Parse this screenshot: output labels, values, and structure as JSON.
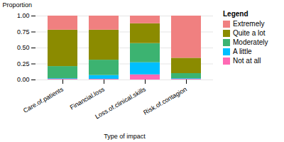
{
  "chart_data": {
    "type": "bar",
    "stacked": true,
    "categories": [
      "Care.of.patients",
      "Financial.loss",
      "Loss.of.clinical.skills",
      "Risk.of.contagion"
    ],
    "series": [
      {
        "name": "Extremely",
        "color": "#F08080",
        "values": [
          0.22,
          0.22,
          0.12,
          0.66
        ]
      },
      {
        "name": "Quite a lot",
        "color": "#8B8B00",
        "values": [
          0.57,
          0.47,
          0.31,
          0.24
        ]
      },
      {
        "name": "Moderately",
        "color": "#3CB371",
        "values": [
          0.19,
          0.24,
          0.3,
          0.08
        ]
      },
      {
        "name": "A little",
        "color": "#00BFFF",
        "values": [
          0.01,
          0.06,
          0.19,
          0.01
        ]
      },
      {
        "name": "Not at all",
        "color": "#FF69B4",
        "values": [
          0.01,
          0.01,
          0.08,
          0.01
        ]
      }
    ],
    "xlabel": "Type of impact",
    "ylabel": "Proportion",
    "legend_title": "Legend",
    "legend": "right",
    "ylim": [
      0,
      1.0
    ],
    "yticks": [
      {
        "value": 0,
        "label": "0.00"
      },
      {
        "value": 0.25,
        "label": "0.25"
      },
      {
        "value": 0.5,
        "label": "0.50"
      },
      {
        "value": 0.75,
        "label": "0.75"
      },
      {
        "value": 1.0,
        "label": "1.00"
      }
    ],
    "grid": true
  }
}
